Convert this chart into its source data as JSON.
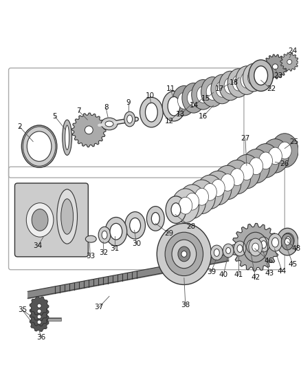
{
  "figsize": [
    4.38,
    5.33
  ],
  "dpi": 100,
  "bg_color": "#ffffff",
  "lc": "#333333",
  "gray_dark": "#555555",
  "gray_mid": "#888888",
  "gray_light": "#cccccc",
  "gray_lighter": "#dddddd",
  "gray_gear": "#aaaaaa"
}
